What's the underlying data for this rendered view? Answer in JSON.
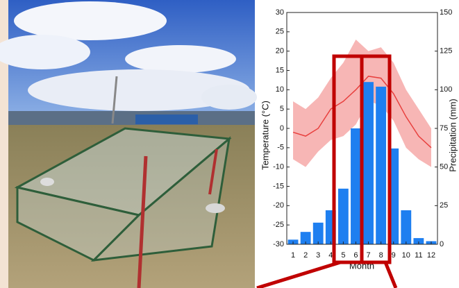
{
  "chart_data": {
    "type": "combo",
    "xlabel": "Month",
    "ylabel": "Temperature (°C)",
    "y2label": "Precipitation (mm)",
    "x": [
      1,
      2,
      3,
      4,
      5,
      6,
      7,
      8,
      9,
      10,
      11,
      12
    ],
    "xlim": [
      0.5,
      12.5
    ],
    "xticks": [
      1,
      2,
      3,
      4,
      5,
      6,
      7,
      8,
      9,
      10,
      11,
      12
    ],
    "ylim": [
      -30,
      30
    ],
    "yticks": [
      -30,
      -25,
      -20,
      -15,
      -10,
      -5,
      0,
      5,
      10,
      15,
      20,
      25,
      30
    ],
    "y2lim": [
      0,
      150
    ],
    "y2ticks": [
      0,
      25,
      50,
      75,
      100,
      125,
      150
    ],
    "series": [
      {
        "type": "bar",
        "axis": "y2",
        "color": "#1e7ff0",
        "values": [
          3,
          8,
          14,
          22,
          36,
          75,
          105,
          102,
          62,
          22,
          4,
          2
        ]
      },
      {
        "type": "line",
        "color": "#e8403e",
        "band_color": "#f07a78",
        "values": [
          -1,
          -2,
          0,
          5,
          7,
          10,
          13.5,
          13,
          9,
          3,
          -2,
          -5
        ],
        "lower": [
          -8,
          -10,
          -6,
          -3,
          -2,
          1,
          7,
          6,
          2,
          -5,
          -8,
          -10
        ],
        "upper": [
          7,
          5,
          8,
          13,
          17,
          23,
          20,
          21,
          17,
          10,
          5,
          0
        ]
      }
    ]
  }
}
